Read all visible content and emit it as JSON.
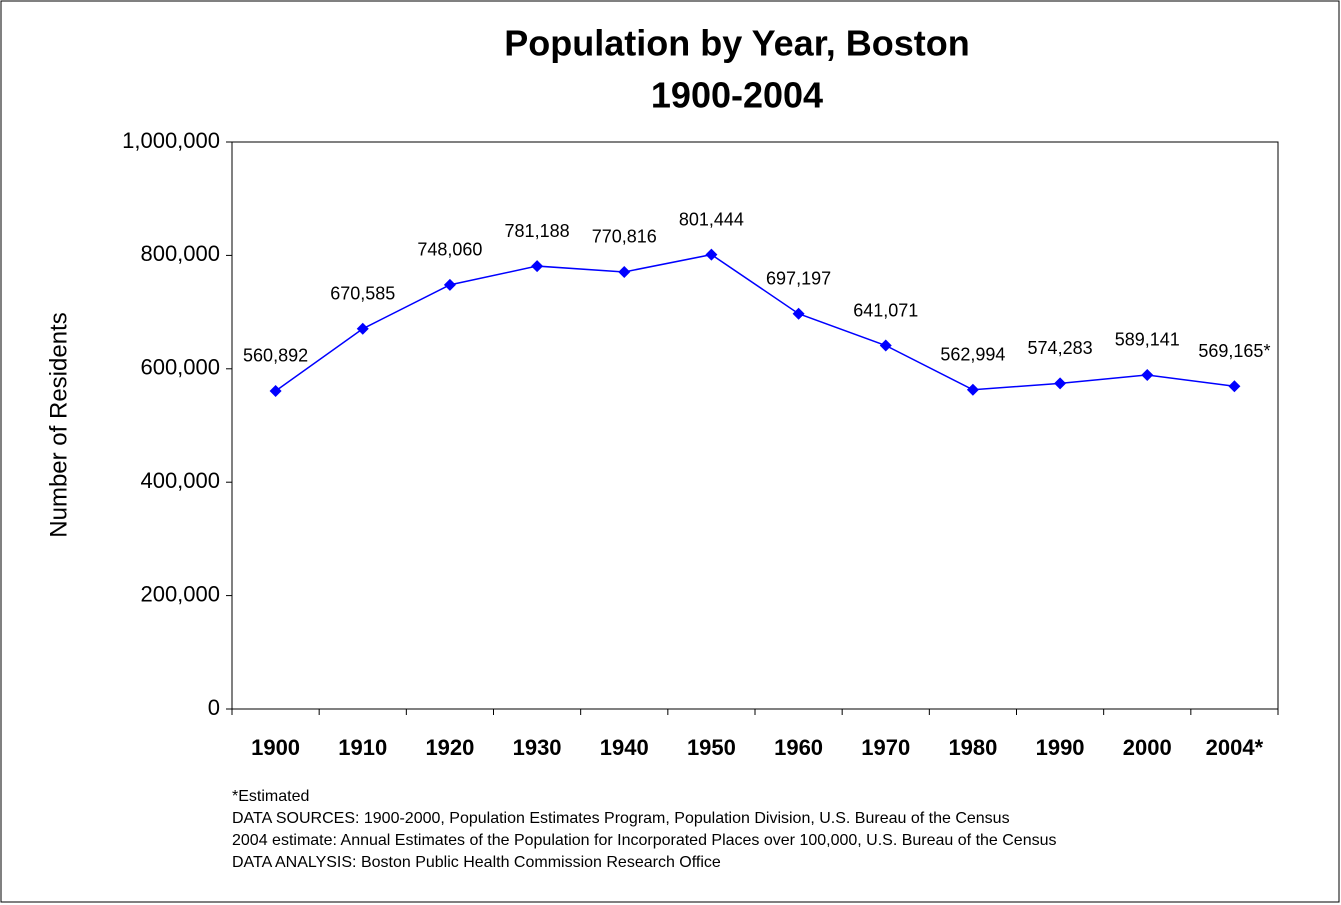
{
  "chart_data": {
    "type": "line",
    "title": "Population by Year, Boston",
    "subtitle": "1900-2004",
    "y_label": "Number of Residents",
    "categories": [
      "1900",
      "1910",
      "1920",
      "1930",
      "1940",
      "1950",
      "1960",
      "1970",
      "1980",
      "1990",
      "2000",
      "2004*"
    ],
    "series": [
      {
        "name": "Population",
        "color": "#0000ff",
        "values": [
          560892,
          670585,
          748060,
          781188,
          770816,
          801444,
          697197,
          641071,
          562994,
          574283,
          589141,
          569165
        ],
        "value_labels": [
          "560,892",
          "670,585",
          "748,060",
          "781,188",
          "770,816",
          "801,444",
          "697,197",
          "641,071",
          "562,994",
          "574,283",
          "589,141",
          "569,165*"
        ]
      }
    ],
    "ylim": [
      0,
      1000000
    ],
    "yticks": [
      0,
      {
        "value": 200000,
        "label": "200,000"
      },
      {
        "value": 400000,
        "label": "400,000"
      },
      {
        "value": 600000,
        "label": "600,000"
      },
      {
        "value": 800000,
        "label": "800,000"
      },
      {
        "value": 1000000,
        "label": "1,000,000"
      }
    ],
    "grid": false,
    "notes": [
      "*Estimated",
      "DATA SOURCES: 1900-2000, Population Estimates Program, Population Division, U.S. Bureau of the Census",
      "2004 estimate: Annual Estimates of the Population for Incorporated Places over 100,000, U.S. Bureau of the Census",
      "DATA ANALYSIS: Boston Public Health Commission Research Office"
    ]
  }
}
